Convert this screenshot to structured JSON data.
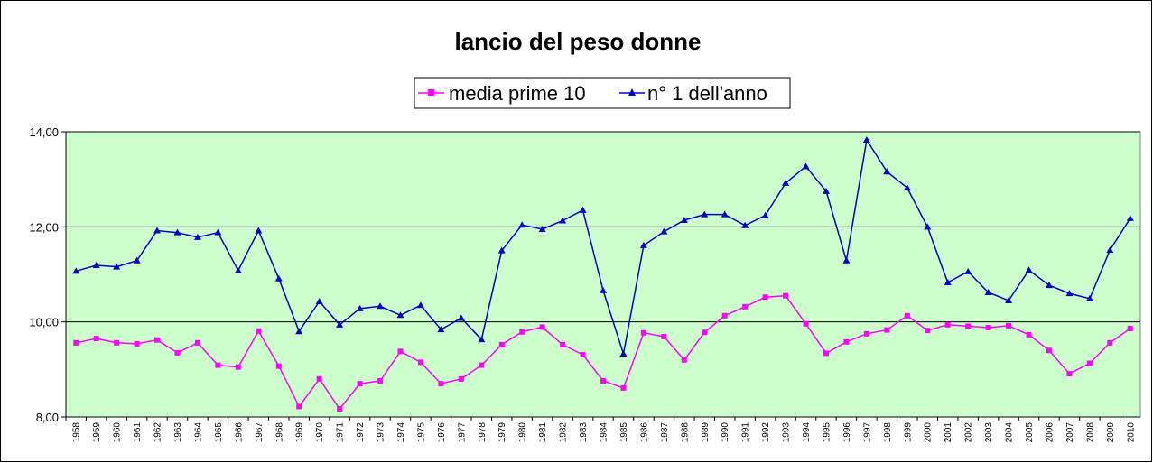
{
  "chart_data": {
    "type": "line",
    "title": "lancio del peso donne",
    "xlabel": "",
    "ylabel": "",
    "ylim": [
      8,
      14
    ],
    "yticks": [
      "8,00",
      "10,00",
      "12,00",
      "14,00"
    ],
    "gridlines": [
      10,
      12,
      14
    ],
    "legend_position": "top-center",
    "background_color": "#ccffcc",
    "categories": [
      "1958",
      "1959",
      "1960",
      "1961",
      "1962",
      "1963",
      "1964",
      "1965",
      "1966",
      "1967",
      "1968",
      "1969",
      "1970",
      "1971",
      "1972",
      "1973",
      "1974",
      "1975",
      "1976",
      "1977",
      "1978",
      "1979",
      "1980",
      "1981",
      "1982",
      "1983",
      "1984",
      "1985",
      "1986",
      "1987",
      "1988",
      "1989",
      "1990",
      "1991",
      "1992",
      "1993",
      "1994",
      "1995",
      "1996",
      "1997",
      "1998",
      "1999",
      "2000",
      "2001",
      "2002",
      "2003",
      "2004",
      "2005",
      "2006",
      "2007",
      "2008",
      "2009",
      "2010"
    ],
    "series": [
      {
        "name": "media prime 10",
        "color": "#ff00ff",
        "marker": "square",
        "values": [
          9.56,
          9.65,
          9.56,
          9.54,
          9.62,
          9.35,
          9.56,
          9.09,
          9.05,
          9.81,
          9.07,
          8.22,
          8.8,
          8.17,
          8.7,
          8.76,
          9.38,
          9.15,
          8.7,
          8.8,
          9.09,
          9.52,
          9.79,
          9.89,
          9.52,
          9.31,
          8.76,
          8.61,
          9.77,
          9.69,
          9.2,
          9.78,
          10.13,
          10.32,
          10.52,
          10.55,
          9.96,
          9.34,
          9.58,
          9.75,
          9.83,
          10.13,
          9.82,
          9.94,
          9.91,
          9.88,
          9.92,
          9.73,
          9.4,
          8.91,
          9.13,
          9.56,
          9.86
        ]
      },
      {
        "name": "n° 1 dell'anno",
        "color": "#0000cc",
        "marker": "triangle",
        "values": [
          11.07,
          11.19,
          11.16,
          11.29,
          11.92,
          11.88,
          11.78,
          11.88,
          11.08,
          11.92,
          10.91,
          9.8,
          10.43,
          9.94,
          10.28,
          10.33,
          10.14,
          10.35,
          9.84,
          10.08,
          9.63,
          11.5,
          12.04,
          11.95,
          12.13,
          12.35,
          10.66,
          9.33,
          11.61,
          11.9,
          12.14,
          12.26,
          12.26,
          12.03,
          12.24,
          12.92,
          13.27,
          12.75,
          11.29,
          13.83,
          13.16,
          12.82,
          12.0,
          10.83,
          11.06,
          10.62,
          10.45,
          11.09,
          10.77,
          10.6,
          10.49,
          11.51,
          12.18
        ]
      }
    ]
  }
}
